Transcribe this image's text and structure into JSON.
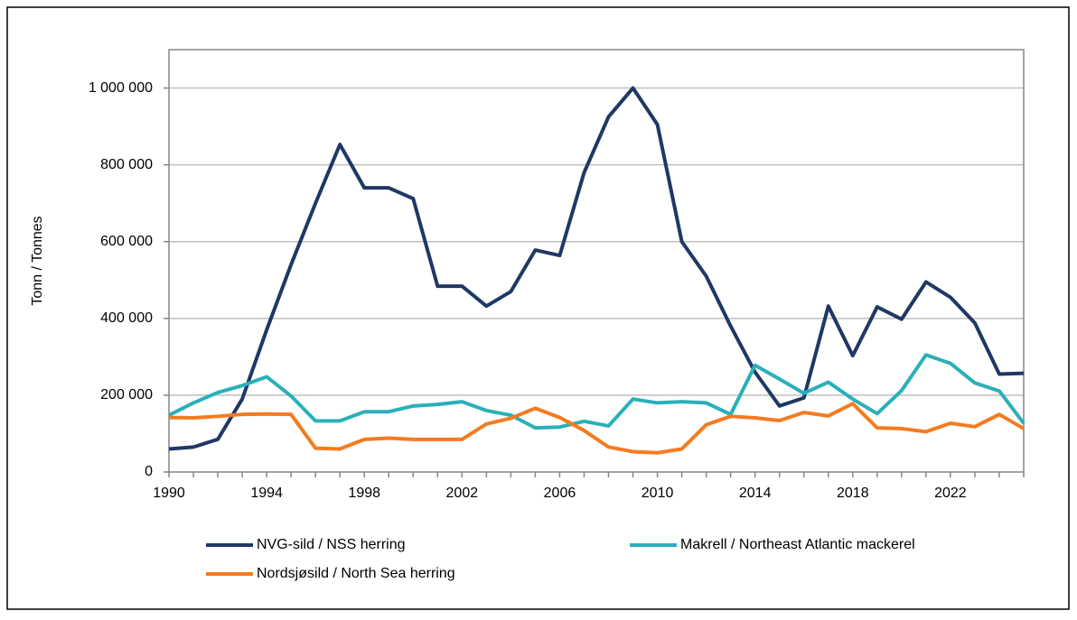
{
  "chart_data": {
    "type": "line",
    "y_label": "Tonn / Tonnes",
    "x": [
      1990,
      1991,
      1992,
      1993,
      1994,
      1995,
      1996,
      1997,
      1998,
      1999,
      2000,
      2001,
      2002,
      2003,
      2004,
      2005,
      2006,
      2007,
      2008,
      2009,
      2010,
      2011,
      2012,
      2013,
      2014,
      2015,
      2016,
      2017,
      2018,
      2019,
      2020,
      2021,
      2022,
      2023,
      2024,
      2025
    ],
    "xlim": [
      1990,
      2025
    ],
    "xticks": [
      1990,
      1994,
      1998,
      2002,
      2006,
      2010,
      2014,
      2018,
      2022
    ],
    "ylim": [
      0,
      1100000
    ],
    "yticks": [
      0,
      {
        "value": 200000,
        "label": "200 000"
      },
      {
        "value": 400000,
        "label": "400 000"
      },
      {
        "value": 600000,
        "label": "600 000"
      },
      {
        "value": 800000,
        "label": "800 000"
      },
      {
        "value": 1000000,
        "label": "1 000 000"
      }
    ],
    "grid": true,
    "legend": "bottom",
    "series": [
      {
        "name": "NVG-sild / NSS herring",
        "color": "#1f3864",
        "values": [
          60000,
          65000,
          85000,
          190000,
          370000,
          540000,
          700000,
          853000,
          740000,
          740000,
          712000,
          484000,
          484000,
          432000,
          470000,
          578000,
          564000,
          780000,
          925000,
          1000000,
          905000,
          600000,
          510000,
          380000,
          260000,
          172000,
          193000,
          432000,
          303000,
          430000,
          398000,
          495000,
          455000,
          388000,
          255000,
          257000
        ]
      },
      {
        "name": "Makrell / Northeast Atlantic mackerel",
        "color": "#2ab0b8",
        "values": [
          148000,
          180000,
          207000,
          225000,
          248000,
          198000,
          133000,
          133000,
          157000,
          157000,
          172000,
          176000,
          183000,
          160000,
          148000,
          115000,
          117000,
          132000,
          120000,
          190000,
          180000,
          183000,
          180000,
          150000,
          278000,
          242000,
          205000,
          234000,
          190000,
          152000,
          212000,
          305000,
          283000,
          232000,
          211000,
          127000
        ]
      },
      {
        "name": "Nordsjøsild / North Sea herring",
        "color": "#f47b20",
        "values": [
          142000,
          141000,
          145000,
          150000,
          151000,
          150000,
          62000,
          60000,
          85000,
          88000,
          85000,
          85000,
          85000,
          125000,
          140000,
          166000,
          142000,
          108000,
          65000,
          53000,
          50000,
          60000,
          123000,
          145000,
          141000,
          134000,
          155000,
          146000,
          178000,
          115000,
          113000,
          105000,
          127000,
          118000,
          150000,
          113000
        ]
      }
    ]
  }
}
